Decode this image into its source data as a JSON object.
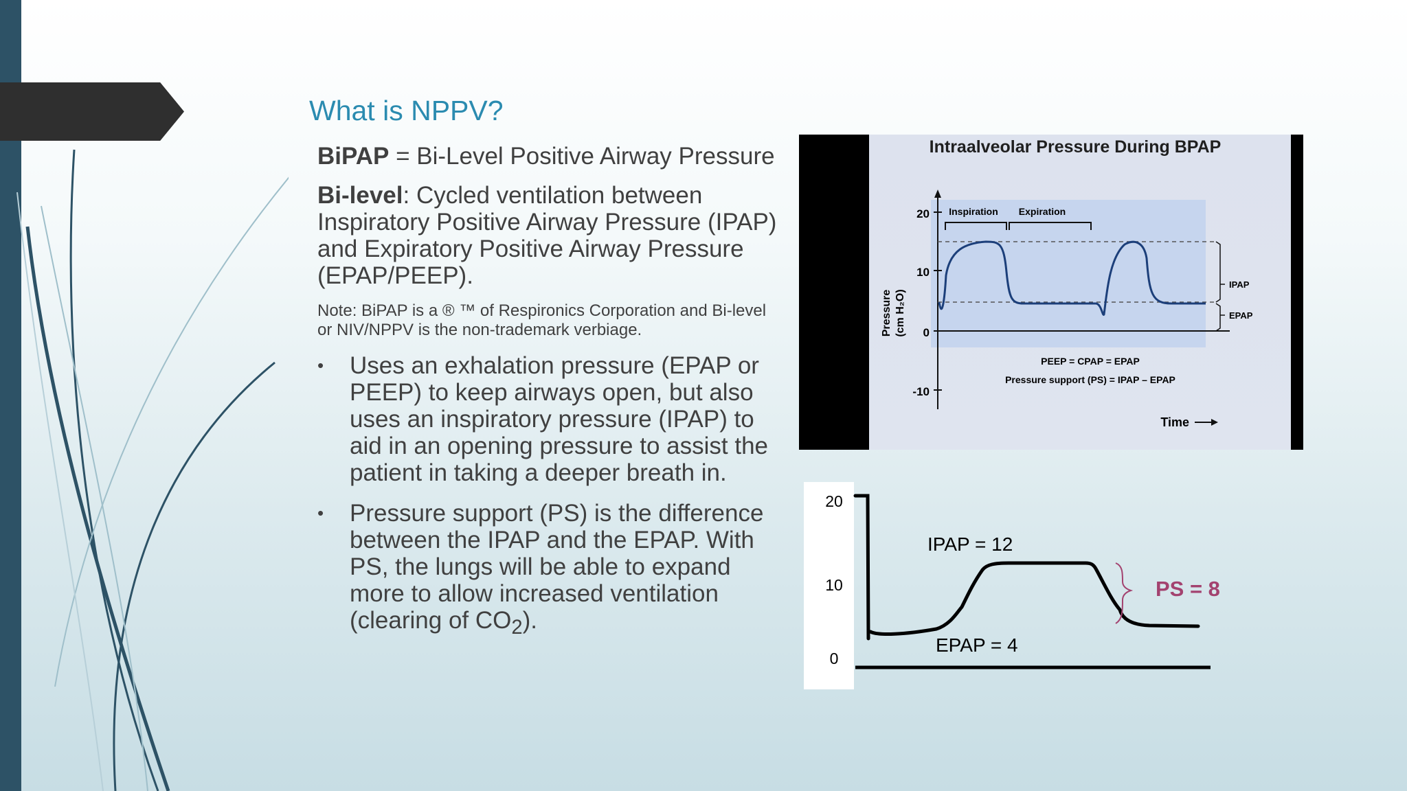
{
  "slide": {
    "title": "What is NPPV?",
    "bipap_term": "BiPAP",
    "bipap_def": " = Bi-Level Positive Airway Pressure",
    "bilevel_term": "Bi-level",
    "bilevel_def": ": Cycled ventilation between Inspiratory Positive Airway Pressure (IPAP) and Expiratory Positive Airway Pressure (EPAP/PEEP).",
    "note": "Note:  BiPAP is a ® ™ of Respironics Corporation and Bi-level or NIV/NPPV is the non-trademark verbiage.",
    "bullet_symbol": "•",
    "bullet1": "Uses an exhalation pressure (EPAP or PEEP) to keep airways open, but also uses an inspiratory pressure (IPAP) to aid in an opening pressure to assist the patient in taking a deeper breath in.",
    "bullet2_pre": "Pressure support (PS) is the difference between the IPAP and the EPAP.  With PS, the lungs will be able to expand more to allow increased ventilation (clearing of CO",
    "bullet2_sub": "2",
    "bullet2_post": ")."
  },
  "bpap_figure": {
    "title": "Intraalveolar Pressure During BPAP",
    "ylabel_line1": "Pressure",
    "ylabel_line2": "(cm H₂O)",
    "ticks": [
      "20",
      "10",
      "0",
      "-10"
    ],
    "inspiration": "Inspiration",
    "expiration": "Expiration",
    "ipap": "IPAP",
    "epap": "EPAP",
    "eq1": "PEEP = CPAP = EPAP",
    "eq2": "Pressure support (PS) = IPAP – EPAP",
    "xlabel": "Time"
  },
  "hand_chart": {
    "ticks": [
      "20",
      "10",
      "0"
    ],
    "ipap_label": "IPAP = 12",
    "epap_label": "EPAP = 4",
    "ps_label": "PS = 8",
    "ps_color": "#a3426f"
  }
}
